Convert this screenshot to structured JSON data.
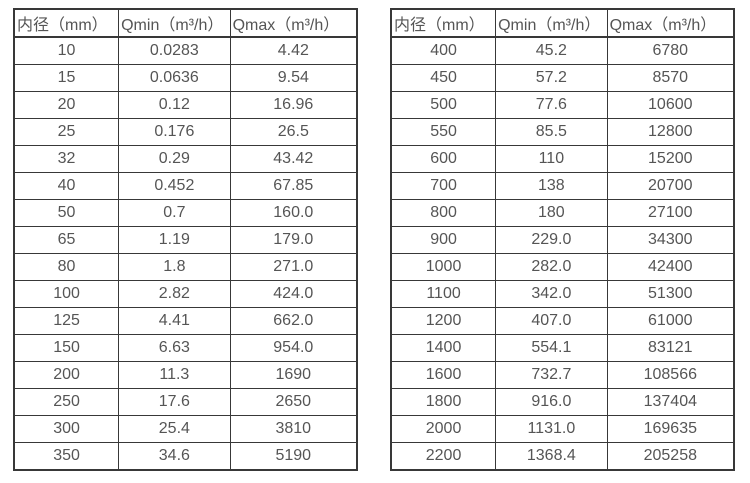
{
  "colors": {
    "background": "#ffffff",
    "table_border": "#383838",
    "text": "#555555"
  },
  "tables": [
    {
      "id": "flow-rate-table-small-diameters",
      "headers": [
        "内径（mm）",
        "Qmin（m³/h）",
        "Qmax（m³/h）"
      ],
      "rows": [
        [
          "10",
          "0.0283",
          "4.42"
        ],
        [
          "15",
          "0.0636",
          "9.54"
        ],
        [
          "20",
          "0.12",
          "16.96"
        ],
        [
          "25",
          "0.176",
          "26.5"
        ],
        [
          "32",
          "0.29",
          "43.42"
        ],
        [
          "40",
          "0.452",
          "67.85"
        ],
        [
          "50",
          "0.7",
          "160.0"
        ],
        [
          "65",
          "1.19",
          "179.0"
        ],
        [
          "80",
          "1.8",
          "271.0"
        ],
        [
          "100",
          "2.82",
          "424.0"
        ],
        [
          "125",
          "4.41",
          "662.0"
        ],
        [
          "150",
          "6.63",
          "954.0"
        ],
        [
          "200",
          "11.3",
          "1690"
        ],
        [
          "250",
          "17.6",
          "2650"
        ],
        [
          "300",
          "25.4",
          "3810"
        ],
        [
          "350",
          "34.6",
          "5190"
        ]
      ]
    },
    {
      "id": "flow-rate-table-large-diameters",
      "headers": [
        "内径（mm）",
        "Qmin（m³/h）",
        "Qmax（m³/h）"
      ],
      "rows": [
        [
          "400",
          "45.2",
          "6780"
        ],
        [
          "450",
          "57.2",
          "8570"
        ],
        [
          "500",
          "77.6",
          "10600"
        ],
        [
          "550",
          "85.5",
          "12800"
        ],
        [
          "600",
          "110",
          "15200"
        ],
        [
          "700",
          "138",
          "20700"
        ],
        [
          "800",
          "180",
          "27100"
        ],
        [
          "900",
          "229.0",
          "34300"
        ],
        [
          "1000",
          "282.0",
          "42400"
        ],
        [
          "1100",
          "342.0",
          "51300"
        ],
        [
          "1200",
          "407.0",
          "61000"
        ],
        [
          "1400",
          "554.1",
          "83121"
        ],
        [
          "1600",
          "732.7",
          "108566"
        ],
        [
          "1800",
          "916.0",
          "137404"
        ],
        [
          "2000",
          "1131.0",
          "169635"
        ],
        [
          "2200",
          "1368.4",
          "205258"
        ]
      ]
    }
  ]
}
